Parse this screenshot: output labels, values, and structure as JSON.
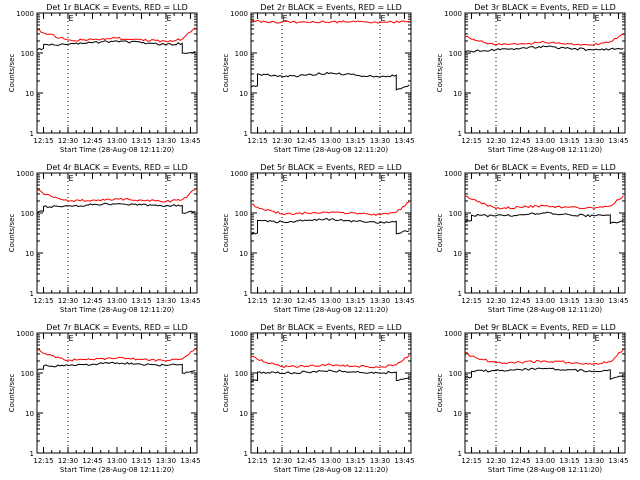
{
  "colors": {
    "background": "#ffffff",
    "axes": "#000000",
    "events": "#000000",
    "lld": "#ff0000"
  },
  "chart_data": [
    {
      "type": "line",
      "title": "Det 1r BLACK = Events, RED = LLD",
      "xlabel": "Start Time (28-Aug-08 12:11:20)",
      "ylabel": "Counts/sec",
      "x_ticks": [
        "12:15",
        "12:30",
        "12:45",
        "13:00",
        "13:15",
        "13:30",
        "13:45"
      ],
      "y_ticks": [
        "1",
        "10",
        "100",
        "1000"
      ],
      "ylim": [
        1,
        1000
      ],
      "yscale": "log",
      "markers": [
        {
          "time": "12:30",
          "label": "E"
        },
        {
          "time": "13:30",
          "label": "E"
        }
      ],
      "series": [
        {
          "color": "#000000",
          "time": [
            "12:11",
            "12:15",
            "12:15",
            "12:30",
            "12:45",
            "13:00",
            "13:15",
            "13:30",
            "13:40",
            "13:40",
            "13:48"
          ],
          "values": [
            118,
            130,
            160,
            165,
            180,
            200,
            180,
            160,
            175,
            100,
            110
          ]
        },
        {
          "color": "#ff0000",
          "time": [
            "12:11",
            "12:15",
            "12:30",
            "12:45",
            "13:00",
            "13:15",
            "13:30",
            "13:40",
            "13:48"
          ],
          "values": [
            380,
            320,
            210,
            215,
            235,
            215,
            195,
            220,
            430
          ]
        }
      ]
    },
    {
      "type": "line",
      "title": "Det 2r BLACK = Events, RED = LLD",
      "xlabel": "Start Time (28-Aug-08 12:11:20)",
      "ylabel": "Counts/sec",
      "x_ticks": [
        "12:15",
        "12:30",
        "12:45",
        "13:00",
        "13:15",
        "13:30",
        "13:45"
      ],
      "y_ticks": [
        "1",
        "10",
        "100",
        "1000"
      ],
      "ylim": [
        1,
        1000
      ],
      "yscale": "log",
      "markers": [
        {
          "time": "12:30",
          "label": "E"
        },
        {
          "time": "13:30",
          "label": "E"
        }
      ],
      "series": [
        {
          "color": "#000000",
          "time": [
            "12:11",
            "12:15",
            "12:15",
            "12:30",
            "12:45",
            "13:00",
            "13:15",
            "13:30",
            "13:40",
            "13:40",
            "13:48"
          ],
          "values": [
            14,
            15,
            30,
            26,
            28,
            32,
            28,
            25,
            28,
            12,
            16
          ]
        },
        {
          "color": "#ff0000",
          "time": [
            "12:11",
            "12:30",
            "12:45",
            "13:00",
            "13:15",
            "13:30",
            "13:48"
          ],
          "values": [
            620,
            590,
            590,
            600,
            600,
            590,
            620
          ]
        }
      ]
    },
    {
      "type": "line",
      "title": "Det 3r BLACK = Events, RED = LLD",
      "xlabel": "Start Time (28-Aug-08 12:11:20)",
      "ylabel": "Counts/sec",
      "x_ticks": [
        "12:15",
        "12:30",
        "12:45",
        "13:00",
        "13:15",
        "13:30",
        "13:45"
      ],
      "y_ticks": [
        "1",
        "10",
        "100",
        "1000"
      ],
      "ylim": [
        1,
        1000
      ],
      "yscale": "log",
      "markers": [
        {
          "time": "12:30",
          "label": "E"
        },
        {
          "time": "13:30",
          "label": "E"
        }
      ],
      "series": [
        {
          "color": "#000000",
          "time": [
            "12:11",
            "12:15",
            "12:30",
            "12:45",
            "13:00",
            "13:15",
            "13:30",
            "13:40",
            "13:48"
          ],
          "values": [
            105,
            110,
            120,
            130,
            145,
            130,
            120,
            125,
            130
          ]
        },
        {
          "color": "#ff0000",
          "time": [
            "12:11",
            "12:15",
            "12:30",
            "12:45",
            "13:00",
            "13:15",
            "13:30",
            "13:40",
            "13:48"
          ],
          "values": [
            260,
            220,
            160,
            170,
            185,
            170,
            160,
            190,
            290
          ]
        }
      ]
    },
    {
      "type": "line",
      "title": "Det 4r BLACK = Events, RED = LLD",
      "xlabel": "Start Time (28-Aug-08 12:11:20)",
      "ylabel": "Counts/sec",
      "x_ticks": [
        "12:15",
        "12:30",
        "12:45",
        "13:00",
        "13:15",
        "13:30",
        "13:45"
      ],
      "y_ticks": [
        "1",
        "10",
        "100",
        "1000"
      ],
      "ylim": [
        1,
        1000
      ],
      "yscale": "log",
      "markers": [
        {
          "time": "12:30",
          "label": "E"
        },
        {
          "time": "13:30",
          "label": "E"
        }
      ],
      "series": [
        {
          "color": "#000000",
          "time": [
            "12:11",
            "12:15",
            "12:15",
            "12:30",
            "12:45",
            "13:00",
            "13:15",
            "13:30",
            "13:40",
            "13:40",
            "13:48"
          ],
          "values": [
            100,
            110,
            145,
            150,
            160,
            170,
            160,
            150,
            155,
            100,
            110
          ]
        },
        {
          "color": "#ff0000",
          "time": [
            "12:11",
            "12:15",
            "12:30",
            "12:45",
            "13:00",
            "13:15",
            "13:30",
            "13:40",
            "13:48"
          ],
          "values": [
            380,
            300,
            200,
            210,
            225,
            210,
            195,
            215,
            390
          ]
        }
      ]
    },
    {
      "type": "line",
      "title": "Det 5r BLACK = Events, RED = LLD",
      "xlabel": "Start Time (28-Aug-08 12:11:20)",
      "ylabel": "Counts/sec",
      "x_ticks": [
        "12:15",
        "12:30",
        "12:45",
        "13:00",
        "13:15",
        "13:30",
        "13:45"
      ],
      "y_ticks": [
        "1",
        "10",
        "100",
        "1000"
      ],
      "ylim": [
        1,
        1000
      ],
      "yscale": "log",
      "markers": [
        {
          "time": "12:30",
          "label": "E"
        },
        {
          "time": "13:30",
          "label": "E"
        }
      ],
      "series": [
        {
          "color": "#000000",
          "time": [
            "12:11",
            "12:15",
            "12:15",
            "12:30",
            "12:45",
            "13:00",
            "13:15",
            "13:30",
            "13:40",
            "13:40",
            "13:48"
          ],
          "values": [
            30,
            32,
            65,
            60,
            65,
            70,
            62,
            58,
            62,
            30,
            36
          ]
        },
        {
          "color": "#ff0000",
          "time": [
            "12:11",
            "12:15",
            "12:30",
            "12:45",
            "13:00",
            "13:15",
            "13:30",
            "13:40",
            "13:48"
          ],
          "values": [
            165,
            140,
            95,
            100,
            105,
            100,
            90,
            105,
            190
          ]
        }
      ]
    },
    {
      "type": "line",
      "title": "Det 6r BLACK = Events, RED = LLD",
      "xlabel": "Start Time (28-Aug-08 12:11:20)",
      "ylabel": "Counts/sec",
      "x_ticks": [
        "12:15",
        "12:30",
        "12:45",
        "13:00",
        "13:15",
        "13:30",
        "13:45"
      ],
      "y_ticks": [
        "1",
        "10",
        "100",
        "1000"
      ],
      "ylim": [
        1,
        1000
      ],
      "yscale": "log",
      "markers": [
        {
          "time": "12:30",
          "label": "E"
        },
        {
          "time": "13:30",
          "label": "E"
        }
      ],
      "series": [
        {
          "color": "#000000",
          "time": [
            "12:11",
            "12:15",
            "12:15",
            "12:30",
            "12:45",
            "13:00",
            "13:15",
            "13:30",
            "13:40",
            "13:40",
            "13:48"
          ],
          "values": [
            60,
            65,
            88,
            85,
            90,
            100,
            90,
            85,
            90,
            55,
            65
          ]
        },
        {
          "color": "#ff0000",
          "time": [
            "12:11",
            "12:15",
            "12:30",
            "12:45",
            "13:00",
            "13:15",
            "13:30",
            "13:40",
            "13:48"
          ],
          "values": [
            260,
            220,
            130,
            140,
            150,
            140,
            130,
            150,
            270
          ]
        }
      ]
    },
    {
      "type": "line",
      "title": "Det 7r BLACK = Events, RED = LLD",
      "xlabel": "Start Time (28-Aug-08 12:11:20)",
      "ylabel": "Counts/sec",
      "x_ticks": [
        "12:15",
        "12:30",
        "12:45",
        "13:00",
        "13:15",
        "13:30",
        "13:45"
      ],
      "y_ticks": [
        "1",
        "10",
        "100",
        "1000"
      ],
      "ylim": [
        1,
        1000
      ],
      "yscale": "log",
      "markers": [
        {
          "time": "12:30",
          "label": "E"
        },
        {
          "time": "13:30",
          "label": "E"
        }
      ],
      "series": [
        {
          "color": "#000000",
          "time": [
            "12:11",
            "12:15",
            "12:15",
            "12:30",
            "12:45",
            "13:00",
            "13:15",
            "13:30",
            "13:40",
            "13:40",
            "13:48"
          ],
          "values": [
            115,
            125,
            150,
            155,
            165,
            180,
            165,
            155,
            165,
            100,
            115
          ]
        },
        {
          "color": "#ff0000",
          "time": [
            "12:11",
            "12:15",
            "12:30",
            "12:45",
            "13:00",
            "13:15",
            "13:30",
            "13:40",
            "13:48"
          ],
          "values": [
            380,
            310,
            210,
            220,
            235,
            220,
            200,
            225,
            420
          ]
        }
      ]
    },
    {
      "type": "line",
      "title": "Det 8r BLACK = Events, RED = LLD",
      "xlabel": "Start Time (28-Aug-08 12:11:20)",
      "ylabel": "Counts/sec",
      "x_ticks": [
        "12:15",
        "12:30",
        "12:45",
        "13:00",
        "13:15",
        "13:30",
        "13:45"
      ],
      "y_ticks": [
        "1",
        "10",
        "100",
        "1000"
      ],
      "ylim": [
        1,
        1000
      ],
      "yscale": "log",
      "markers": [
        {
          "time": "12:30",
          "label": "E"
        },
        {
          "time": "13:30",
          "label": "E"
        }
      ],
      "series": [
        {
          "color": "#000000",
          "time": [
            "12:11",
            "12:15",
            "12:15",
            "12:30",
            "12:45",
            "13:00",
            "13:15",
            "13:30",
            "13:40",
            "13:40",
            "13:48"
          ],
          "values": [
            60,
            65,
            105,
            100,
            105,
            115,
            105,
            100,
            105,
            65,
            75
          ]
        },
        {
          "color": "#ff0000",
          "time": [
            "12:11",
            "12:15",
            "12:30",
            "12:45",
            "13:00",
            "13:15",
            "13:30",
            "13:40",
            "13:48"
          ],
          "values": [
            260,
            220,
            145,
            150,
            160,
            150,
            140,
            160,
            280
          ]
        }
      ]
    },
    {
      "type": "line",
      "title": "Det 9r BLACK = Events, RED = LLD",
      "xlabel": "Start Time (28-Aug-08 12:11:20)",
      "ylabel": "Counts/sec",
      "x_ticks": [
        "12:15",
        "12:30",
        "12:45",
        "13:00",
        "13:15",
        "13:30",
        "13:45"
      ],
      "y_ticks": [
        "1",
        "10",
        "100",
        "1000"
      ],
      "ylim": [
        1,
        1000
      ],
      "yscale": "log",
      "markers": [
        {
          "time": "12:30",
          "label": "E"
        },
        {
          "time": "13:30",
          "label": "E"
        }
      ],
      "series": [
        {
          "color": "#000000",
          "time": [
            "12:11",
            "12:15",
            "12:15",
            "12:30",
            "12:45",
            "13:00",
            "13:15",
            "13:30",
            "13:40",
            "13:40",
            "13:48"
          ],
          "values": [
            75,
            80,
            110,
            115,
            120,
            130,
            120,
            110,
            120,
            70,
            85
          ]
        },
        {
          "color": "#ff0000",
          "time": [
            "12:11",
            "12:15",
            "12:30",
            "12:45",
            "13:00",
            "13:15",
            "13:30",
            "13:40",
            "13:48"
          ],
          "values": [
            330,
            260,
            180,
            185,
            200,
            185,
            170,
            190,
            390
          ]
        }
      ]
    }
  ]
}
